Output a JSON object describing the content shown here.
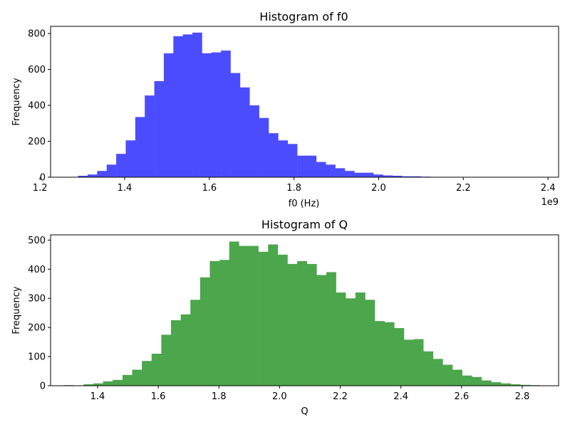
{
  "chart_data": [
    {
      "type": "bar",
      "title": "Histogram of f0",
      "xlabel": "f0 (Hz)",
      "ylabel": "Frequency",
      "x_offset_label": "1e9",
      "color": "#4c4cff",
      "xlim": [
        1.225,
        2.425
      ],
      "ylim": [
        0,
        840
      ],
      "xticks": [
        1.2,
        1.4,
        1.6,
        1.8,
        2.0,
        2.2,
        2.4
      ],
      "xtick_labels": [
        "1.2",
        "1.4",
        "1.6",
        "1.8",
        "2.0",
        "2.2",
        "2.4"
      ],
      "yticks": [
        0,
        200,
        400,
        600,
        800
      ],
      "ytick_labels": [
        "0",
        "200",
        "400",
        "600",
        "800"
      ],
      "bin_start": 1.245,
      "bin_width": 0.0225,
      "values": [
        2,
        0,
        8,
        15,
        35,
        70,
        130,
        205,
        335,
        455,
        535,
        690,
        785,
        795,
        805,
        690,
        695,
        705,
        580,
        500,
        400,
        330,
        245,
        205,
        185,
        120,
        120,
        85,
        70,
        50,
        35,
        25,
        25,
        15,
        10,
        8,
        5,
        5,
        3,
        2,
        1,
        1,
        1,
        1,
        1,
        1,
        0,
        0,
        0,
        1
      ]
    },
    {
      "type": "bar",
      "title": "Histogram of Q",
      "xlabel": "Q",
      "ylabel": "Frequency",
      "color": "#4ca64c",
      "xlim": [
        1.245,
        2.92
      ],
      "ylim": [
        0,
        518
      ],
      "xticks": [
        1.4,
        1.6,
        1.8,
        2.0,
        2.2,
        2.4,
        2.6,
        2.8
      ],
      "xtick_labels": [
        "1.4",
        "1.6",
        "1.8",
        "2.0",
        "2.2",
        "2.4",
        "2.6",
        "2.8"
      ],
      "yticks": [
        0,
        100,
        200,
        300,
        400,
        500
      ],
      "ytick_labels": [
        "0",
        "100",
        "200",
        "300",
        "400",
        "500"
      ],
      "bin_start": 1.29,
      "bin_width": 0.032,
      "values": [
        2,
        1,
        5,
        8,
        15,
        20,
        37,
        55,
        85,
        110,
        175,
        225,
        245,
        295,
        372,
        428,
        432,
        495,
        480,
        480,
        460,
        485,
        450,
        418,
        428,
        418,
        380,
        390,
        320,
        300,
        320,
        295,
        222,
        218,
        198,
        158,
        160,
        118,
        92,
        72,
        55,
        35,
        30,
        18,
        12,
        8,
        5,
        3,
        2,
        1,
        1
      ]
    }
  ]
}
